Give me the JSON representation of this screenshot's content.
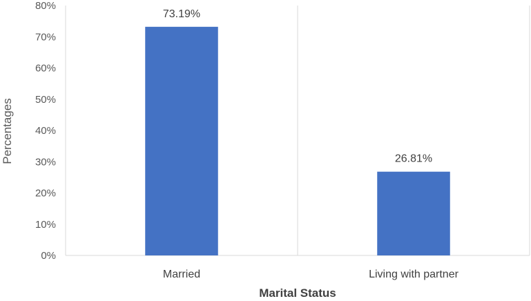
{
  "chart_data": {
    "type": "bar",
    "categories": [
      "Married",
      "Living with partner"
    ],
    "values": [
      73.19,
      26.81
    ],
    "data_labels": [
      "73.19%",
      "26.81%"
    ],
    "xlabel": "Marital Status",
    "ylabel": "Percentages",
    "ylim": [
      0,
      80
    ],
    "yticks": [
      0,
      10,
      20,
      30,
      40,
      50,
      60,
      70,
      80
    ],
    "ytick_labels": [
      "0%",
      "10%",
      "20%",
      "30%",
      "40%",
      "50%",
      "60%",
      "70%",
      "80%"
    ],
    "grid": "vertical category separators",
    "legend": "none",
    "bar_color": "#4472C4"
  }
}
